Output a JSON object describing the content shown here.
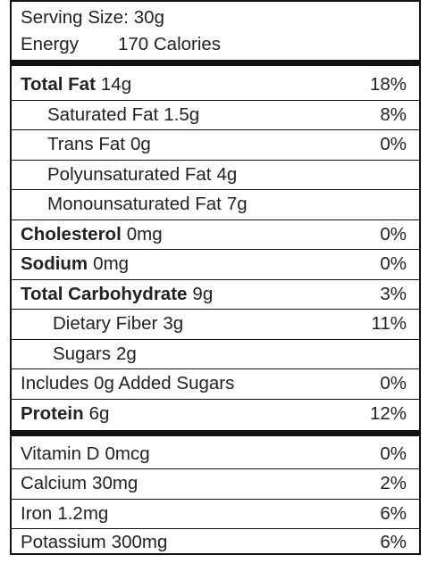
{
  "header": {
    "serving_label": "Serving Size:",
    "serving_value": "30g",
    "energy_label": "Energy",
    "energy_value": "170 Calories"
  },
  "nutrients": [
    {
      "name": "Total Fat",
      "amount": "14g",
      "dv": "18%"
    },
    {
      "name": "Saturated Fat",
      "amount": "1.5g",
      "dv": "8%"
    },
    {
      "name": "Trans Fat",
      "amount": "0g",
      "dv": "0%"
    },
    {
      "name": "Polyunsaturated Fat",
      "amount": "4g",
      "dv": ""
    },
    {
      "name": "Monounsaturated Fat",
      "amount": "7g",
      "dv": ""
    },
    {
      "name": "Cholesterol",
      "amount": "0mg",
      "dv": "0%"
    },
    {
      "name": "Sodium",
      "amount": "0mg",
      "dv": "0%"
    },
    {
      "name": "Total Carbohydrate",
      "amount": "9g",
      "dv": "3%"
    },
    {
      "name": "Dietary Fiber",
      "amount": "3g",
      "dv": "11%"
    },
    {
      "name": "Sugars",
      "amount": "2g",
      "dv": ""
    },
    {
      "name": "Includes 0g Added Sugars",
      "amount": "",
      "dv": "0%"
    },
    {
      "name": "Protein",
      "amount": "6g",
      "dv": "12%"
    }
  ],
  "micronutrients": [
    {
      "name": "Vitamin D",
      "amount": "0mcg",
      "dv": "0%"
    },
    {
      "name": "Calcium",
      "amount": "30mg",
      "dv": "2%"
    },
    {
      "name": "Iron",
      "amount": "1.2mg",
      "dv": "6%"
    },
    {
      "name": "Potassium",
      "amount": "300mg",
      "dv": "6%"
    }
  ]
}
